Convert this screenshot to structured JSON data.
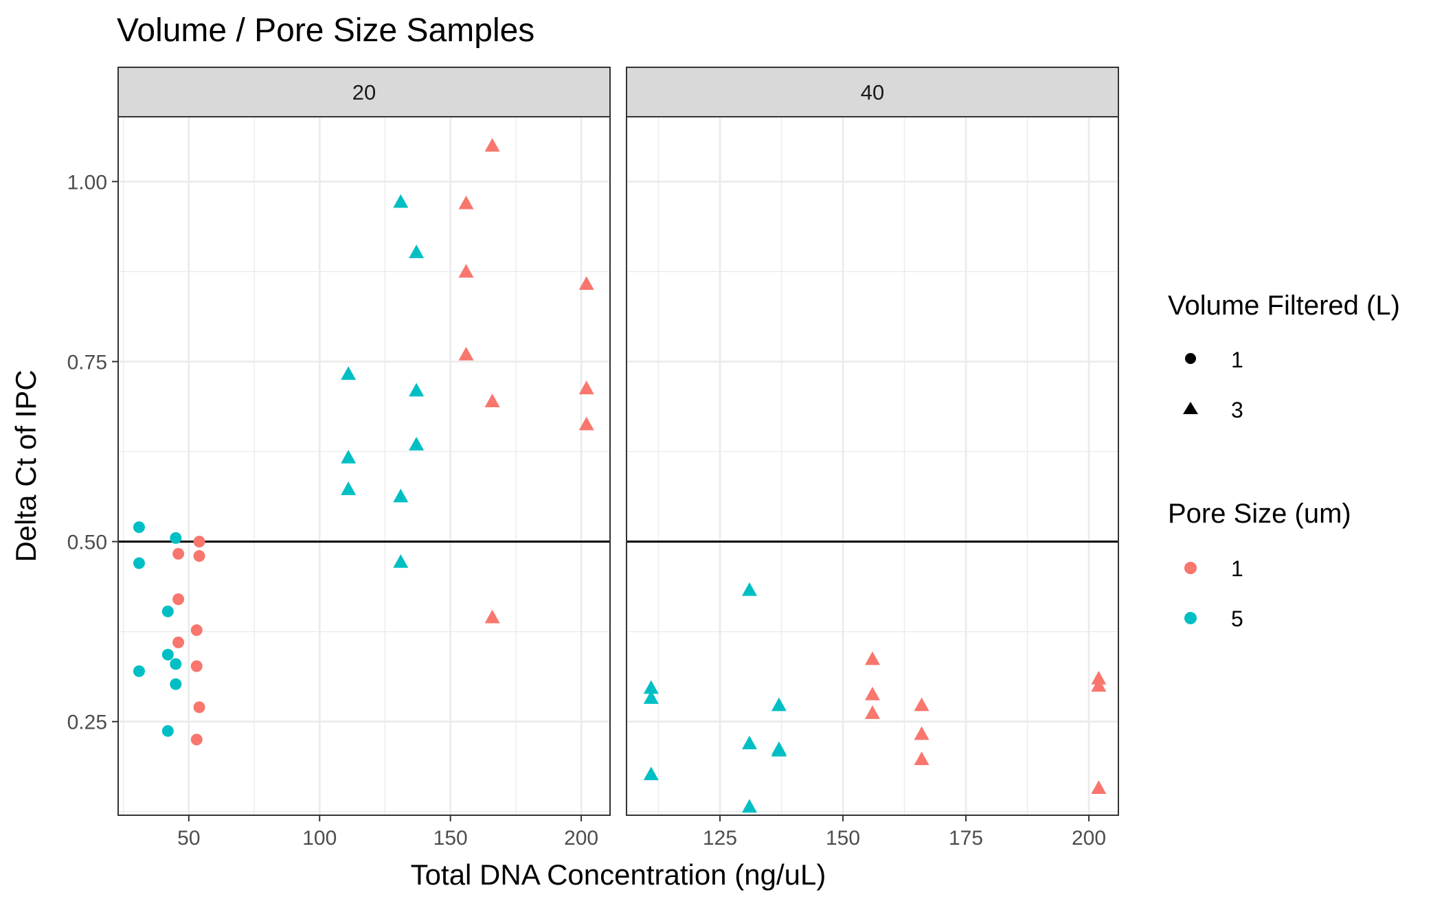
{
  "chart_data": {
    "type": "scatter",
    "title": "Volume / Pore Size Samples",
    "xlabel": "Total DNA Concentration (ng/uL)",
    "ylabel": "Delta Ct of IPC",
    "ylim": [
      0.12,
      1.09
    ],
    "yticks": [
      0.25,
      0.5,
      0.75,
      1.0
    ],
    "ytick_labels": [
      "0.25",
      "0.50",
      "0.75",
      "1.00"
    ],
    "hline": 0.5,
    "grid": true,
    "colors": {
      "1": "#F8766D",
      "5": "#00BFC4"
    },
    "legend": {
      "placement": "right",
      "shape": {
        "title": "Volume Filtered (L)",
        "items": [
          {
            "label": "1",
            "shape": "circle"
          },
          {
            "label": "3",
            "shape": "triangle"
          }
        ]
      },
      "color": {
        "title": "Pore Size (um)",
        "items": [
          {
            "label": "1",
            "color": "#F8766D"
          },
          {
            "label": "5",
            "color": "#00BFC4"
          }
        ]
      }
    },
    "panels": [
      {
        "label": "20",
        "xlim": [
          23,
          211
        ],
        "xticks": [
          50,
          100,
          150,
          200
        ],
        "xtick_labels": [
          "50",
          "100",
          "150",
          "200"
        ],
        "points": [
          {
            "x": 31,
            "y": 0.52,
            "volume": "1",
            "pore": "5"
          },
          {
            "x": 31,
            "y": 0.47,
            "volume": "1",
            "pore": "5"
          },
          {
            "x": 31,
            "y": 0.32,
            "volume": "1",
            "pore": "5"
          },
          {
            "x": 45,
            "y": 0.505,
            "volume": "1",
            "pore": "5"
          },
          {
            "x": 42,
            "y": 0.403,
            "volume": "1",
            "pore": "5"
          },
          {
            "x": 42,
            "y": 0.343,
            "volume": "1",
            "pore": "5"
          },
          {
            "x": 45,
            "y": 0.33,
            "volume": "1",
            "pore": "5"
          },
          {
            "x": 45,
            "y": 0.302,
            "volume": "1",
            "pore": "5"
          },
          {
            "x": 42,
            "y": 0.237,
            "volume": "1",
            "pore": "5"
          },
          {
            "x": 46,
            "y": 0.483,
            "volume": "1",
            "pore": "1"
          },
          {
            "x": 46,
            "y": 0.42,
            "volume": "1",
            "pore": "1"
          },
          {
            "x": 46,
            "y": 0.36,
            "volume": "1",
            "pore": "1"
          },
          {
            "x": 54,
            "y": 0.5,
            "volume": "1",
            "pore": "1"
          },
          {
            "x": 54,
            "y": 0.48,
            "volume": "1",
            "pore": "1"
          },
          {
            "x": 53,
            "y": 0.377,
            "volume": "1",
            "pore": "1"
          },
          {
            "x": 53,
            "y": 0.327,
            "volume": "1",
            "pore": "1"
          },
          {
            "x": 54,
            "y": 0.27,
            "volume": "1",
            "pore": "1"
          },
          {
            "x": 53,
            "y": 0.225,
            "volume": "1",
            "pore": "1"
          },
          {
            "x": 111,
            "y": 0.733,
            "volume": "3",
            "pore": "5"
          },
          {
            "x": 111,
            "y": 0.617,
            "volume": "3",
            "pore": "5"
          },
          {
            "x": 111,
            "y": 0.573,
            "volume": "3",
            "pore": "5"
          },
          {
            "x": 131,
            "y": 0.972,
            "volume": "3",
            "pore": "5"
          },
          {
            "x": 131,
            "y": 0.563,
            "volume": "3",
            "pore": "5"
          },
          {
            "x": 131,
            "y": 0.472,
            "volume": "3",
            "pore": "5"
          },
          {
            "x": 137,
            "y": 0.902,
            "volume": "3",
            "pore": "5"
          },
          {
            "x": 137,
            "y": 0.71,
            "volume": "3",
            "pore": "5"
          },
          {
            "x": 137,
            "y": 0.635,
            "volume": "3",
            "pore": "5"
          },
          {
            "x": 156,
            "y": 0.97,
            "volume": "3",
            "pore": "1"
          },
          {
            "x": 156,
            "y": 0.875,
            "volume": "3",
            "pore": "1"
          },
          {
            "x": 156,
            "y": 0.76,
            "volume": "3",
            "pore": "1"
          },
          {
            "x": 166,
            "y": 1.05,
            "volume": "3",
            "pore": "1"
          },
          {
            "x": 166,
            "y": 0.695,
            "volume": "3",
            "pore": "1"
          },
          {
            "x": 166,
            "y": 0.395,
            "volume": "3",
            "pore": "1"
          },
          {
            "x": 202,
            "y": 0.858,
            "volume": "3",
            "pore": "1"
          },
          {
            "x": 202,
            "y": 0.713,
            "volume": "3",
            "pore": "1"
          },
          {
            "x": 202,
            "y": 0.663,
            "volume": "3",
            "pore": "1"
          }
        ]
      },
      {
        "label": "40",
        "xlim": [
          106,
          206
        ],
        "xticks": [
          125,
          150,
          175,
          200
        ],
        "xtick_labels": [
          "125",
          "150",
          "175",
          "200"
        ],
        "points": [
          {
            "x": 111,
            "y": 0.297,
            "volume": "3",
            "pore": "5"
          },
          {
            "x": 111,
            "y": 0.283,
            "volume": "3",
            "pore": "5"
          },
          {
            "x": 111,
            "y": 0.177,
            "volume": "3",
            "pore": "5"
          },
          {
            "x": 131,
            "y": 0.433,
            "volume": "3",
            "pore": "5"
          },
          {
            "x": 131,
            "y": 0.22,
            "volume": "3",
            "pore": "5"
          },
          {
            "x": 131,
            "y": 0.132,
            "volume": "3",
            "pore": "5"
          },
          {
            "x": 137,
            "y": 0.273,
            "volume": "3",
            "pore": "5"
          },
          {
            "x": 137,
            "y": 0.212,
            "volume": "3",
            "pore": "5"
          },
          {
            "x": 137,
            "y": 0.21,
            "volume": "3",
            "pore": "5"
          },
          {
            "x": 156,
            "y": 0.337,
            "volume": "3",
            "pore": "1"
          },
          {
            "x": 156,
            "y": 0.288,
            "volume": "3",
            "pore": "1"
          },
          {
            "x": 156,
            "y": 0.262,
            "volume": "3",
            "pore": "1"
          },
          {
            "x": 166,
            "y": 0.273,
            "volume": "3",
            "pore": "1"
          },
          {
            "x": 166,
            "y": 0.233,
            "volume": "3",
            "pore": "1"
          },
          {
            "x": 166,
            "y": 0.198,
            "volume": "3",
            "pore": "1"
          },
          {
            "x": 202,
            "y": 0.31,
            "volume": "3",
            "pore": "1"
          },
          {
            "x": 202,
            "y": 0.3,
            "volume": "3",
            "pore": "1"
          },
          {
            "x": 202,
            "y": 0.158,
            "volume": "3",
            "pore": "1"
          }
        ]
      }
    ]
  }
}
